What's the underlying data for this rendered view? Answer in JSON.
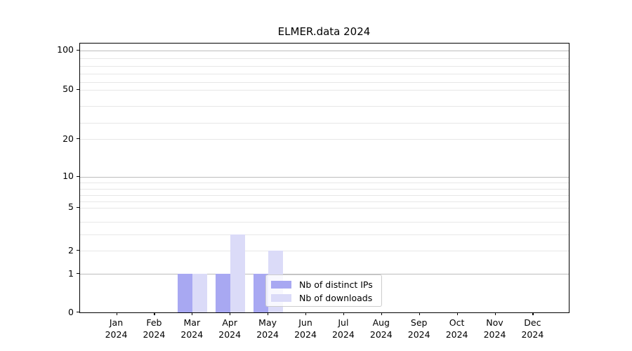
{
  "title": "ELMER.data 2024",
  "chart_data": {
    "type": "bar",
    "title": "ELMER.data 2024",
    "categories": [
      "Jan",
      "Feb",
      "Mar",
      "Apr",
      "May",
      "Jun",
      "Jul",
      "Aug",
      "Sep",
      "Oct",
      "Nov",
      "Dec"
    ],
    "category_year": "2024",
    "series": [
      {
        "name": "Nb of distinct IPs",
        "color": "#a8a8f2",
        "values": [
          0,
          0,
          1,
          1,
          1,
          0,
          0,
          0,
          0,
          0,
          0,
          0
        ]
      },
      {
        "name": "Nb of downloads",
        "color": "#dbdbf8",
        "values": [
          0,
          0,
          1,
          3,
          2,
          0,
          0,
          0,
          0,
          0,
          0,
          0
        ]
      }
    ],
    "xlabel": "",
    "ylabel": "",
    "y_tick_values": [
      0,
      1,
      2,
      5,
      10,
      20,
      50,
      100
    ],
    "y_major_grid_values": [
      1,
      10,
      100
    ],
    "y_minor_grid_values": [
      3,
      4,
      6,
      7,
      8,
      9,
      30,
      40,
      60,
      70,
      80,
      90
    ],
    "ylim": [
      0,
      110
    ],
    "scale": "log-like",
    "grid": "horizontal",
    "legend_position": "lower-center"
  }
}
